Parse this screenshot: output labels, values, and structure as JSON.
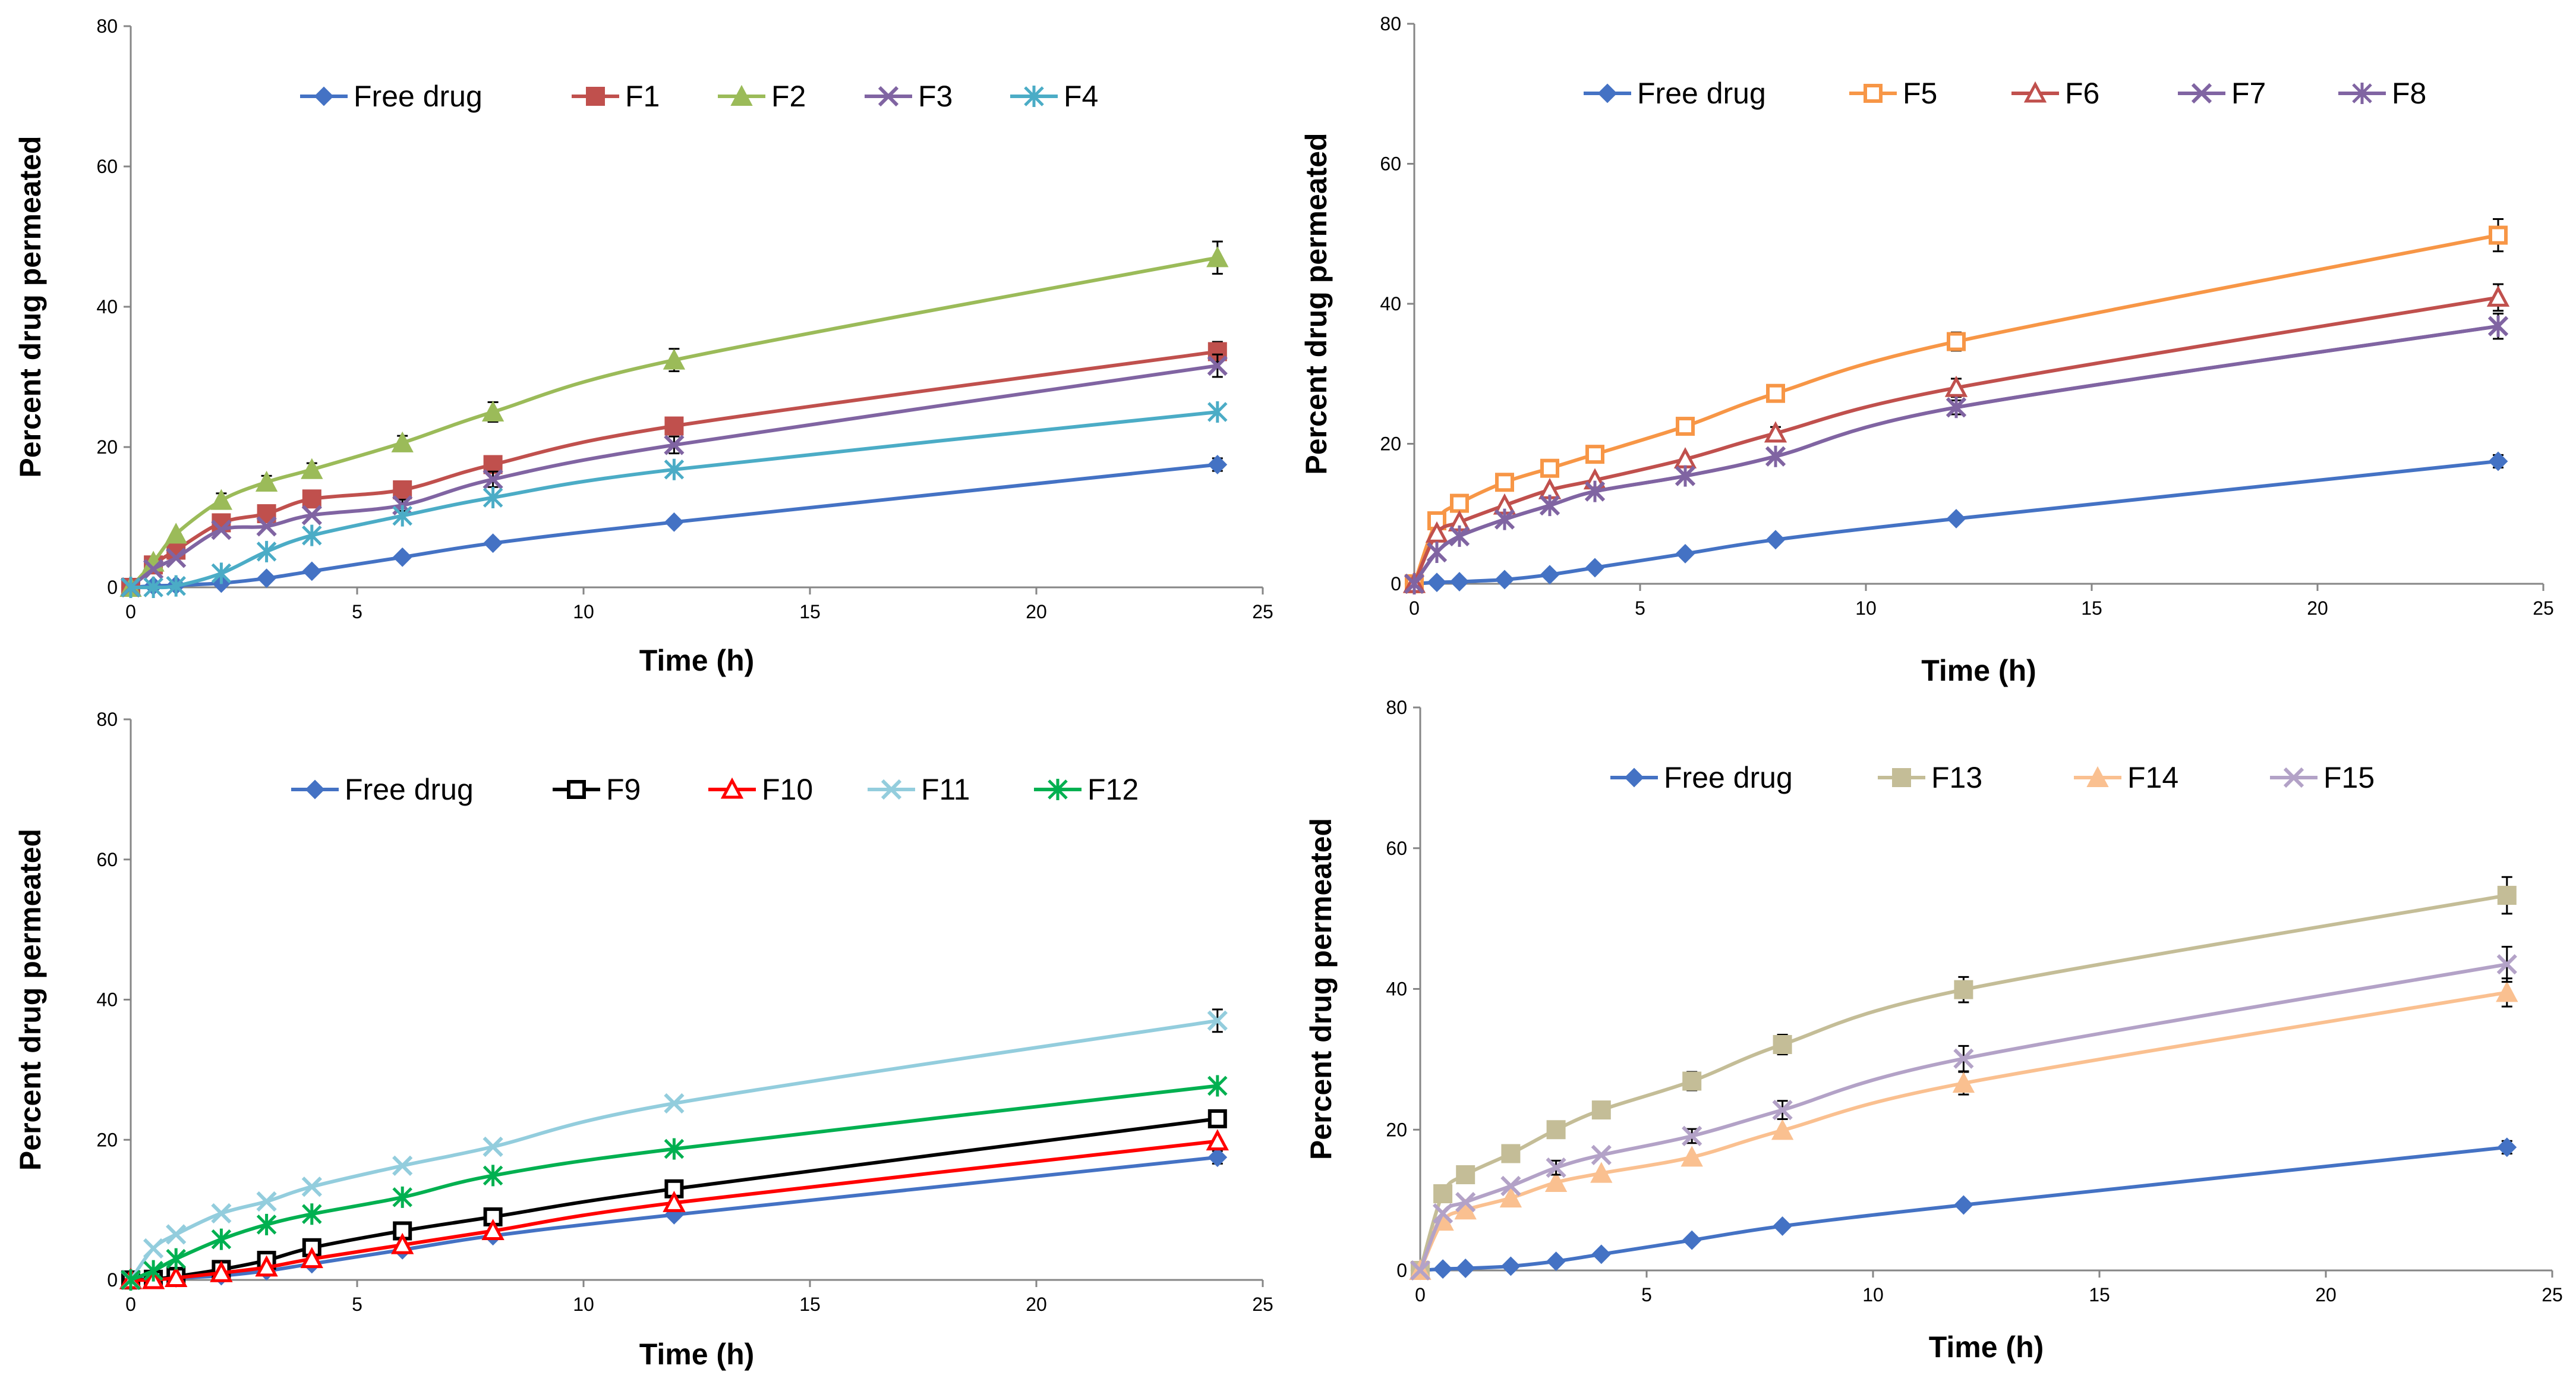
{
  "chart_data": [
    {
      "type": "line",
      "xlabel": "Time (h)",
      "ylabel": "Percent drug permeated",
      "xlim": [
        0,
        25
      ],
      "ylim": [
        0,
        80
      ],
      "xticks": [
        "0",
        "5",
        "10",
        "15",
        "20",
        "25"
      ],
      "yticks": [
        "0",
        "20",
        "40",
        "60",
        "80"
      ],
      "legend": "top",
      "x": [
        0,
        0.5,
        1,
        2,
        3,
        4,
        6,
        8,
        12,
        24
      ],
      "series": [
        {
          "name": "Free drug",
          "color": "#4472C4",
          "marker": "diamond",
          "values": [
            0,
            0.2,
            0.3,
            0.6,
            1.3,
            2.3,
            4.3,
            6.3,
            9.3,
            17.5
          ],
          "errors": [
            0,
            0,
            0,
            0,
            0,
            0,
            0,
            0,
            0,
            0.9
          ]
        },
        {
          "name": "F1",
          "color": "#C0504D",
          "marker": "square",
          "values": [
            0,
            3.2,
            5.3,
            9.2,
            10.5,
            12.6,
            13.9,
            17.5,
            23.0,
            33.6
          ],
          "errors": [
            0,
            0,
            0,
            0.8,
            0,
            0,
            0,
            0.9,
            0.8,
            1.4
          ]
        },
        {
          "name": "F2",
          "color": "#9BBB59",
          "marker": "triangle",
          "values": [
            0,
            3.6,
            7.6,
            12.4,
            15.0,
            16.8,
            20.6,
            25.0,
            32.4,
            47.0
          ],
          "errors": [
            0,
            0,
            0,
            1.0,
            0.9,
            0.9,
            1.0,
            1.4,
            1.6,
            2.3
          ]
        },
        {
          "name": "F3",
          "color": "#8064A2",
          "marker": "x",
          "values": [
            0,
            2.6,
            4.2,
            8.2,
            8.7,
            10.3,
            11.7,
            15.4,
            20.3,
            31.6
          ],
          "errors": [
            0,
            0,
            0,
            0,
            0,
            0,
            0.8,
            1.1,
            1.2,
            1.6
          ]
        },
        {
          "name": "F4",
          "color": "#4BACC6",
          "marker": "star",
          "values": [
            0,
            0,
            0.2,
            2.0,
            5.1,
            7.4,
            10.2,
            12.8,
            16.8,
            25.0
          ],
          "errors": [
            0,
            0,
            0,
            0,
            0,
            0,
            0,
            0,
            0,
            0
          ]
        }
      ]
    },
    {
      "type": "line",
      "xlabel": "Time (h)",
      "ylabel": "Percent drug permeated",
      "xlim": [
        0,
        25
      ],
      "ylim": [
        0,
        80
      ],
      "xticks": [
        "0",
        "5",
        "10",
        "15",
        "20",
        "25"
      ],
      "yticks": [
        "0",
        "20",
        "40",
        "60",
        "80"
      ],
      "legend": "top",
      "x": [
        0,
        0.5,
        1,
        2,
        3,
        4,
        6,
        8,
        12,
        24
      ],
      "series": [
        {
          "name": "Free drug",
          "color": "#4472C4",
          "marker": "diamond",
          "values": [
            0,
            0.2,
            0.3,
            0.6,
            1.3,
            2.3,
            4.3,
            6.3,
            9.3,
            17.5
          ],
          "errors": [
            0,
            0,
            0,
            0,
            0,
            0,
            0,
            0,
            0,
            0.9
          ]
        },
        {
          "name": "F5",
          "color": "#F79646",
          "marker": "square-open",
          "values": [
            0,
            9.0,
            11.5,
            14.5,
            16.5,
            18.5,
            22.5,
            27.2,
            34.6,
            49.8
          ],
          "errors": [
            0,
            0,
            0,
            0,
            0,
            0,
            0,
            0,
            1.3,
            2.3
          ]
        },
        {
          "name": "F6",
          "color": "#C0504D",
          "marker": "triangle-open",
          "values": [
            0,
            7.2,
            8.8,
            11.2,
            13.4,
            14.8,
            17.8,
            21.5,
            28.0,
            40.9
          ],
          "errors": [
            0,
            0,
            0,
            0,
            0,
            0,
            0,
            0.9,
            1.3,
            1.9
          ]
        },
        {
          "name": "F7",
          "color": "#8064A2",
          "marker": "x",
          "values": [
            0,
            4.5,
            6.8,
            9.2,
            11.2,
            13.2,
            15.4,
            18.2,
            25.2,
            36.8
          ],
          "errors": [
            0,
            0,
            0,
            0,
            0,
            0,
            0,
            0,
            1.0,
            1.8
          ]
        },
        {
          "name": "F8",
          "color": "#8064A2",
          "marker": "star",
          "values": [
            0,
            4.5,
            6.8,
            9.2,
            11.2,
            13.2,
            15.4,
            18.2,
            25.2,
            36.8
          ],
          "errors": [
            0,
            0,
            0,
            0,
            0,
            0,
            0,
            0,
            0,
            0
          ]
        }
      ]
    },
    {
      "type": "line",
      "xlabel": "Time (h)",
      "ylabel": "Percent drug permeated",
      "xlim": [
        0,
        25
      ],
      "ylim": [
        0,
        80
      ],
      "xticks": [
        "0",
        "5",
        "10",
        "15",
        "20",
        "25"
      ],
      "yticks": [
        "0",
        "20",
        "40",
        "60",
        "80"
      ],
      "legend": "top",
      "x": [
        0,
        0.5,
        1,
        2,
        3,
        4,
        6,
        8,
        12,
        24
      ],
      "series": [
        {
          "name": "Free drug",
          "color": "#4472C4",
          "marker": "diamond",
          "values": [
            0,
            0.2,
            0.3,
            0.6,
            1.3,
            2.3,
            4.3,
            6.3,
            9.3,
            17.5
          ],
          "errors": [
            0,
            0,
            0,
            0,
            0,
            0,
            0,
            0,
            0,
            0.9
          ]
        },
        {
          "name": "F9",
          "color": "#000000",
          "marker": "square-open",
          "values": [
            0,
            0.1,
            0.5,
            1.5,
            2.8,
            4.6,
            7.0,
            9.0,
            13.0,
            23.0
          ],
          "errors": [
            0,
            0,
            0,
            0,
            0,
            0,
            0,
            0,
            0,
            0
          ]
        },
        {
          "name": "F10",
          "color": "#FF0000",
          "marker": "triangle-open",
          "values": [
            0,
            0,
            0.3,
            1.0,
            1.8,
            3.0,
            5.0,
            7.0,
            11.0,
            19.8
          ],
          "errors": [
            0,
            0,
            0,
            0,
            0,
            0,
            0,
            0,
            0,
            0
          ]
        },
        {
          "name": "F11",
          "color": "#93CDDD",
          "marker": "x",
          "values": [
            0,
            4.5,
            6.5,
            9.5,
            11.2,
            13.3,
            16.3,
            19.0,
            25.2,
            37.0
          ],
          "errors": [
            0,
            0,
            0,
            0,
            0,
            0,
            0,
            0,
            0,
            1.6
          ]
        },
        {
          "name": "F12",
          "color": "#00B050",
          "marker": "star",
          "values": [
            0,
            1.3,
            3.0,
            5.8,
            7.9,
            9.4,
            11.8,
            14.9,
            18.7,
            27.7
          ],
          "errors": [
            0,
            0,
            0,
            0,
            0,
            0,
            0,
            0,
            0,
            0
          ]
        }
      ]
    },
    {
      "type": "line",
      "xlabel": "Time (h)",
      "ylabel": "Percent drug permeated",
      "xlim": [
        0,
        25
      ],
      "ylim": [
        0,
        80
      ],
      "xticks": [
        "0",
        "5",
        "10",
        "15",
        "20",
        "25"
      ],
      "yticks": [
        "0",
        "20",
        "40",
        "60",
        "80"
      ],
      "legend": "top",
      "x": [
        0,
        0.5,
        1,
        2,
        3,
        4,
        6,
        8,
        12,
        24
      ],
      "series": [
        {
          "name": "Free drug",
          "color": "#4472C4",
          "marker": "diamond",
          "values": [
            0,
            0.2,
            0.3,
            0.6,
            1.3,
            2.3,
            4.3,
            6.3,
            9.3,
            17.5
          ],
          "errors": [
            0,
            0,
            0,
            0,
            0,
            0,
            0,
            0,
            0,
            0.9
          ]
        },
        {
          "name": "F13",
          "color": "#C4BD97",
          "marker": "square",
          "values": [
            0,
            10.9,
            13.6,
            16.6,
            20.0,
            22.8,
            26.9,
            32.1,
            39.9,
            53.3
          ],
          "errors": [
            0,
            0,
            0,
            0,
            0,
            0,
            1.3,
            1.4,
            1.8,
            2.6
          ]
        },
        {
          "name": "F14",
          "color": "#FAC090",
          "marker": "triangle",
          "values": [
            0,
            7.0,
            8.6,
            10.3,
            12.5,
            13.8,
            16.1,
            19.9,
            26.6,
            39.5
          ],
          "errors": [
            0,
            0,
            0,
            0,
            0,
            0,
            0,
            0,
            1.6,
            2.0
          ]
        },
        {
          "name": "F15",
          "color": "#B3A2C7",
          "marker": "x",
          "values": [
            0,
            8.1,
            9.7,
            12.0,
            14.6,
            16.4,
            19.1,
            22.8,
            30.1,
            43.5
          ],
          "errors": [
            0,
            0,
            0,
            0,
            1.0,
            0,
            1.0,
            1.3,
            1.8,
            2.5
          ]
        }
      ]
    }
  ]
}
